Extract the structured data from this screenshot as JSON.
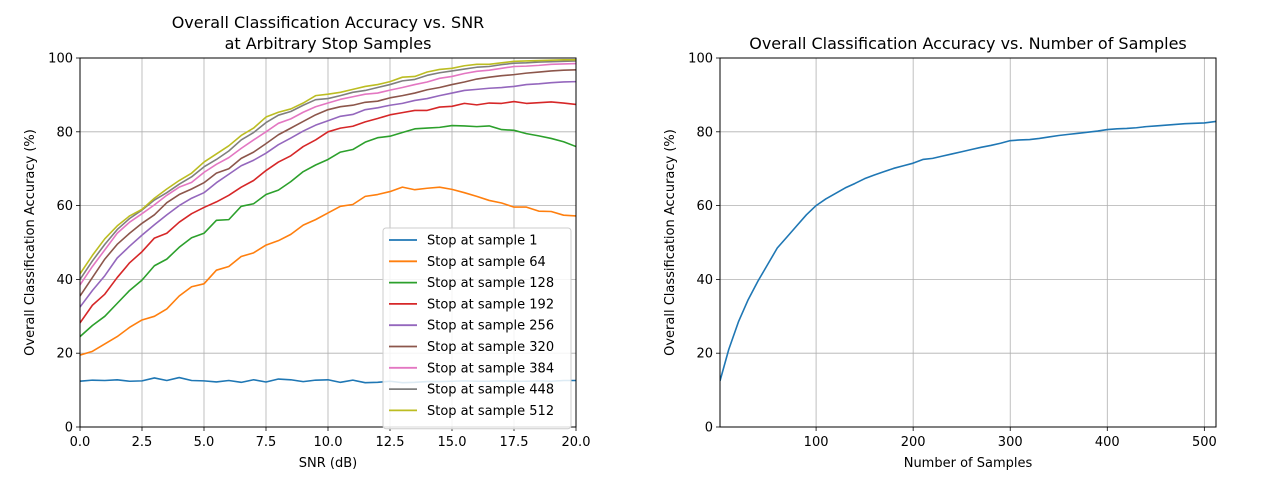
{
  "chart_data": [
    {
      "type": "line",
      "title": "Overall Classification Accuracy vs. SNR\nat Arbitrary Stop Samples",
      "xlabel": "SNR (dB)",
      "ylabel": "Overall Classification Accuracy (%)",
      "xlim": [
        0,
        20
      ],
      "ylim": [
        0,
        100
      ],
      "xticks": [
        0,
        2.5,
        5,
        7.5,
        10,
        12.5,
        15,
        17.5,
        20
      ],
      "xtick_labels": [
        "0.0",
        "2.5",
        "5.0",
        "7.5",
        "10.0",
        "12.5",
        "15.0",
        "17.5",
        "20.0"
      ],
      "yticks": [
        0,
        20,
        40,
        60,
        80,
        100
      ],
      "ytick_labels": [
        "0",
        "20",
        "40",
        "60",
        "80",
        "100"
      ],
      "grid": true,
      "legend_position": "lower-right",
      "x": [
        0,
        0.5,
        1,
        1.5,
        2,
        2.5,
        3,
        3.5,
        4,
        4.5,
        5,
        5.5,
        6,
        6.5,
        7,
        7.5,
        8,
        8.5,
        9,
        9.5,
        10,
        10.5,
        11,
        11.5,
        12,
        12.5,
        13,
        13.5,
        14,
        14.5,
        15,
        15.5,
        16,
        16.5,
        17,
        17.5,
        18,
        18.5,
        19,
        19.5,
        20
      ],
      "series": [
        {
          "name": "Stop at sample 1",
          "color": "#1f77b4",
          "values": [
            12.4,
            12.7,
            12.6,
            12.8,
            12.4,
            12.5,
            13.3,
            12.6,
            13.4,
            12.6,
            12.5,
            12.2,
            12.6,
            12.1,
            12.8,
            12.2,
            13.0,
            12.8,
            12.3,
            12.7,
            12.8,
            12.1,
            12.7,
            12.0,
            12.1,
            12.4,
            12.0,
            12.1,
            12.3,
            12.3,
            12.4,
            12.5,
            12.4,
            12.4,
            12.5,
            12.4,
            12.4,
            12.5,
            12.4,
            12.6,
            12.6
          ]
        },
        {
          "name": "Stop at sample 64",
          "color": "#ff7f0e",
          "values": [
            19.5,
            20.5,
            22.5,
            24.5,
            27,
            29,
            30,
            32,
            35.5,
            38,
            38.8,
            42.5,
            43.5,
            46.2,
            47.2,
            49.3,
            50.5,
            52.2,
            54.7,
            56.2,
            58.0,
            59.8,
            60.3,
            62.5,
            63.0,
            63.8,
            65.0,
            64.3,
            64.7,
            65.0,
            64.4,
            63.5,
            62.5,
            61.4,
            60.7,
            59.6,
            59.6,
            58.5,
            58.4,
            57.4,
            57.2
          ]
        },
        {
          "name": "Stop at sample 128",
          "color": "#2ca02c",
          "values": [
            24.5,
            27.5,
            30,
            33.5,
            37,
            39.8,
            43.7,
            45.5,
            48.7,
            51.3,
            52.5,
            56.0,
            56.2,
            59.8,
            60.5,
            63.0,
            64.2,
            66.5,
            69.2,
            71.0,
            72.5,
            74.5,
            75.2,
            77.2,
            78.4,
            78.8,
            79.8,
            80.8,
            81.0,
            81.2,
            81.7,
            81.6,
            81.4,
            81.6,
            80.6,
            80.4,
            79.5,
            78.9,
            78.2,
            77.3,
            76.0
          ]
        },
        {
          "name": "Stop at sample 192",
          "color": "#d62728",
          "values": [
            28.2,
            33,
            36,
            40.5,
            44.5,
            47.5,
            51.2,
            52.5,
            55.5,
            57.8,
            59.5,
            61.0,
            62.8,
            65.0,
            66.8,
            69.5,
            71.8,
            73.5,
            76.0,
            77.8,
            80.0,
            81.0,
            81.5,
            82.7,
            83.6,
            84.6,
            85.2,
            85.8,
            85.8,
            86.7,
            86.9,
            87.7,
            87.3,
            87.8,
            87.7,
            88.2,
            87.7,
            87.9,
            88.1,
            87.8,
            87.4
          ]
        },
        {
          "name": "Stop at sample 256",
          "color": "#9467bd",
          "values": [
            32.5,
            37,
            41,
            45.8,
            49,
            52,
            54.8,
            57.5,
            60,
            62,
            63.5,
            66.2,
            68.5,
            70.8,
            72.3,
            74.2,
            76.5,
            78.3,
            80.2,
            81.8,
            83.0,
            84.2,
            84.7,
            86.0,
            86.5,
            87.2,
            87.7,
            88.5,
            89.0,
            89.8,
            90.5,
            91.2,
            91.5,
            91.8,
            92.0,
            92.3,
            92.8,
            93.0,
            93.3,
            93.5,
            93.6
          ]
        },
        {
          "name": "Stop at sample 320",
          "color": "#8c564b",
          "values": [
            35.5,
            40.5,
            45.5,
            49.5,
            52.5,
            55.2,
            57.5,
            60.8,
            63.0,
            64.5,
            66.2,
            68.8,
            70.0,
            72.8,
            74.5,
            76.8,
            79.2,
            81.0,
            82.8,
            84.6,
            86.0,
            86.8,
            87.2,
            88.0,
            88.3,
            89.2,
            89.8,
            90.5,
            91.4,
            92.0,
            92.8,
            93.5,
            94.3,
            94.8,
            95.2,
            95.5,
            95.9,
            96.2,
            96.5,
            96.7,
            96.8
          ]
        },
        {
          "name": "Stop at sample 384",
          "color": "#e377c2",
          "values": [
            38.5,
            43.5,
            48,
            52.5,
            55.5,
            57.8,
            60.2,
            62.8,
            65.0,
            66.3,
            69.0,
            71.2,
            73.0,
            75.5,
            77.8,
            80.0,
            82.3,
            83.5,
            85.3,
            86.8,
            87.8,
            88.8,
            89.5,
            90.2,
            90.5,
            91.3,
            92.0,
            92.8,
            93.5,
            94.5,
            95.0,
            95.8,
            96.4,
            96.7,
            97.2,
            97.7,
            97.8,
            98.0,
            98.3,
            98.4,
            98.5
          ]
        },
        {
          "name": "Stop at sample 448",
          "color": "#7f7f7f",
          "values": [
            40,
            45,
            49.5,
            53.5,
            56.5,
            58.8,
            61.5,
            63.5,
            65.8,
            67.8,
            70.5,
            72.5,
            74.8,
            77.8,
            79.8,
            82.5,
            84.5,
            85.5,
            87.2,
            88.7,
            89.0,
            89.8,
            90.7,
            91.2,
            92.0,
            92.8,
            93.8,
            94.2,
            95.3,
            96.0,
            96.5,
            97.0,
            97.5,
            97.7,
            98.2,
            98.6,
            98.7,
            98.9,
            99.0,
            99.1,
            99.2
          ]
        },
        {
          "name": "Stop at sample 512",
          "color": "#bcbd22",
          "values": [
            41.5,
            46.5,
            51,
            54.5,
            57.2,
            59,
            62,
            64.5,
            66.8,
            68.8,
            71.8,
            74.0,
            76.2,
            79.0,
            81.0,
            84.0,
            85.3,
            86.2,
            87.8,
            89.8,
            90.2,
            90.7,
            91.5,
            92.3,
            92.8,
            93.6,
            94.8,
            95.0,
            96.2,
            96.9,
            97.2,
            97.9,
            98.3,
            98.3,
            98.7,
            99.1,
            99.2,
            99.3,
            99.4,
            99.5,
            99.5
          ]
        }
      ]
    },
    {
      "type": "line",
      "title": "Overall Classification Accuracy vs. Number of Samples",
      "xlabel": "Number of Samples",
      "ylabel": "Overall Classification Accuracy (%)",
      "xlim": [
        1,
        512
      ],
      "ylim": [
        0,
        100
      ],
      "xticks": [
        100,
        200,
        300,
        400,
        500
      ],
      "xtick_labels": [
        "100",
        "200",
        "300",
        "400",
        "500"
      ],
      "yticks": [
        0,
        20,
        40,
        60,
        80,
        100
      ],
      "ytick_labels": [
        "0",
        "20",
        "40",
        "60",
        "80",
        "100"
      ],
      "grid": true,
      "series": [
        {
          "color": "#1f77b4",
          "x": [
            1,
            10,
            20,
            30,
            40,
            50,
            60,
            70,
            80,
            90,
            100,
            110,
            120,
            130,
            140,
            150,
            160,
            170,
            180,
            190,
            200,
            210,
            220,
            230,
            240,
            250,
            260,
            270,
            280,
            290,
            300,
            310,
            320,
            330,
            340,
            350,
            360,
            370,
            380,
            390,
            400,
            410,
            420,
            430,
            440,
            450,
            460,
            470,
            480,
            490,
            500,
            512
          ],
          "values": [
            12.5,
            21,
            28.5,
            34.5,
            39.5,
            44,
            48.5,
            51.5,
            54.5,
            57.5,
            60,
            61.8,
            63.3,
            64.8,
            66,
            67.3,
            68.3,
            69.2,
            70.1,
            70.8,
            71.5,
            72.5,
            72.8,
            73.4,
            74,
            74.6,
            75.2,
            75.8,
            76.3,
            76.9,
            77.6,
            77.8,
            77.9,
            78.2,
            78.6,
            79,
            79.3,
            79.6,
            79.9,
            80.2,
            80.6,
            80.8,
            80.9,
            81.1,
            81.4,
            81.6,
            81.8,
            82,
            82.2,
            82.3,
            82.4,
            82.8
          ]
        }
      ]
    }
  ]
}
